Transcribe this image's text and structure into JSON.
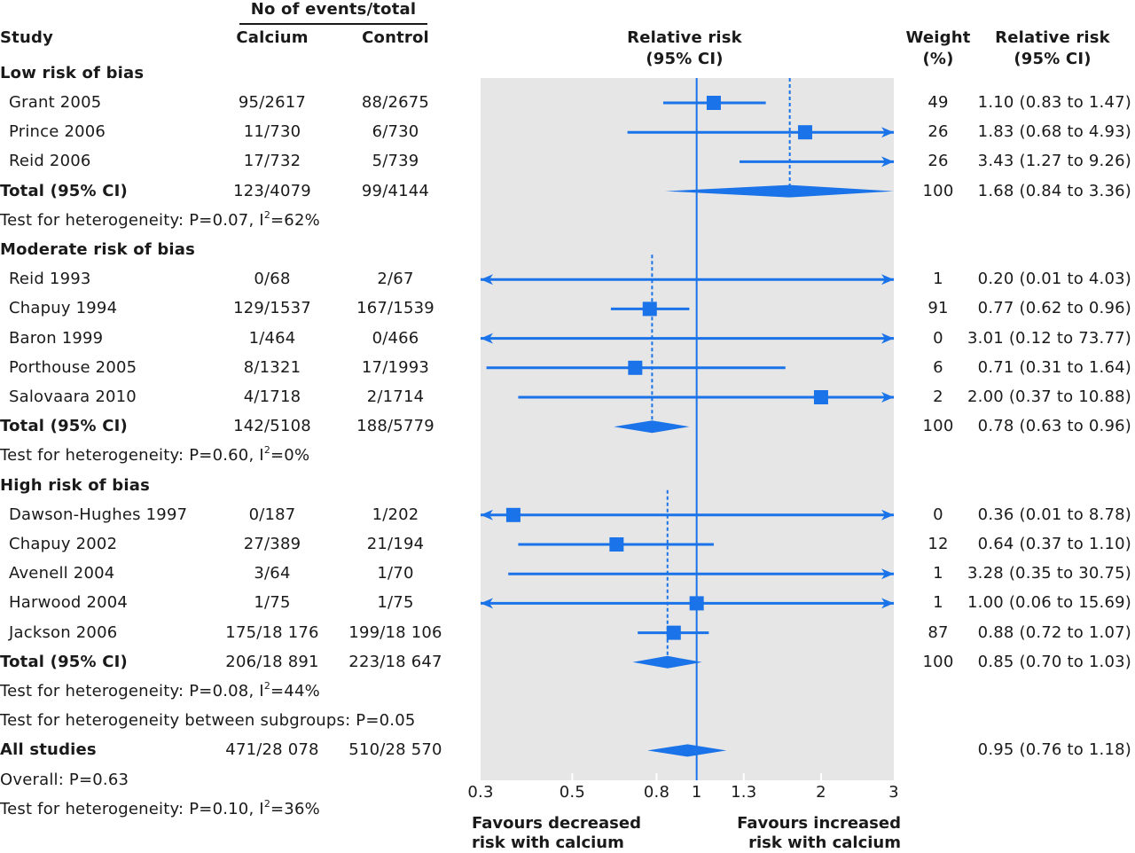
{
  "header": {
    "study": "Study",
    "events_group": "No of events/total",
    "calcium": "Calcium",
    "control": "Control",
    "rr_plot": "Relative risk",
    "rr_plot_ci": "(95% CI)",
    "weight": "Weight",
    "weight_unit": "(%)",
    "rr_text": "Relative risk",
    "rr_text_ci": "(95% CI)"
  },
  "colors": {
    "accent": "#1a73e8",
    "plot_bg": "#e6e6e6",
    "text": "#1a1a1a"
  },
  "chart_data": {
    "type": "forest",
    "title": "",
    "xlabel": "Relative risk (95% CI)",
    "xscale": "log",
    "xlim": [
      0.3,
      3
    ],
    "xticks": [
      "0.3",
      "0.5",
      "0.8",
      "1",
      "1.3",
      "2",
      "3"
    ],
    "xtick_values": [
      0.3,
      0.5,
      0.8,
      1,
      1.3,
      2,
      3
    ],
    "null_line": 1,
    "favours_left": [
      "Favours decreased",
      "risk with calcium"
    ],
    "favours_right": [
      "Favours increased",
      "risk with calcium"
    ],
    "subgroups": [
      {
        "name": "Low risk of bias",
        "studies": [
          {
            "study": "Grant 2005",
            "calcium": "95/2617",
            "control": "88/2675",
            "weight": "49",
            "rr": 1.1,
            "lo": 0.83,
            "hi": 1.47,
            "rr_text": "1.10 (0.83 to 1.47)"
          },
          {
            "study": "Prince 2006",
            "calcium": "11/730",
            "control": "6/730",
            "weight": "26",
            "rr": 1.83,
            "lo": 0.68,
            "hi": 4.93,
            "rr_text": "1.83 (0.68 to 4.93)"
          },
          {
            "study": "Reid 2006",
            "calcium": "17/732",
            "control": "5/739",
            "weight": "26",
            "rr": 3.43,
            "lo": 1.27,
            "hi": 9.26,
            "rr_text": "3.43 (1.27 to 9.26)"
          }
        ],
        "total": {
          "label": "Total (95% CI)",
          "calcium": "123/4079",
          "control": "99/4144",
          "weight": "100",
          "rr": 1.68,
          "lo": 0.84,
          "hi": 3.36,
          "rr_text": "1.68 (0.84 to 3.36)"
        },
        "heterogeneity": {
          "prefix": "Test for heterogeneity: P=0.07, I",
          "sup": "2",
          "suffix": "=62%"
        }
      },
      {
        "name": "Moderate risk of bias",
        "studies": [
          {
            "study": "Reid 1993",
            "calcium": "0/68",
            "control": "2/67",
            "weight": "1",
            "rr": 0.2,
            "lo": 0.01,
            "hi": 4.03,
            "rr_text": "0.20 (0.01 to 4.03)"
          },
          {
            "study": "Chapuy 1994",
            "calcium": "129/1537",
            "control": "167/1539",
            "weight": "91",
            "rr": 0.77,
            "lo": 0.62,
            "hi": 0.96,
            "rr_text": "0.77 (0.62 to 0.96)"
          },
          {
            "study": "Baron 1999",
            "calcium": "1/464",
            "control": "0/466",
            "weight": "0",
            "rr": 3.01,
            "lo": 0.12,
            "hi": 73.77,
            "rr_text": "3.01 (0.12 to 73.77)"
          },
          {
            "study": "Porthouse 2005",
            "calcium": "8/1321",
            "control": "17/1993",
            "weight": "6",
            "rr": 0.71,
            "lo": 0.31,
            "hi": 1.64,
            "rr_text": "0.71 (0.31 to 1.64)"
          },
          {
            "study": "Salovaara 2010",
            "calcium": "4/1718",
            "control": "2/1714",
            "weight": "2",
            "rr": 2.0,
            "lo": 0.37,
            "hi": 10.88,
            "rr_text": "2.00 (0.37 to 10.88)"
          }
        ],
        "total": {
          "label": "Total (95% CI)",
          "calcium": "142/5108",
          "control": "188/5779",
          "weight": "100",
          "rr": 0.78,
          "lo": 0.63,
          "hi": 0.96,
          "rr_text": "0.78 (0.63 to 0.96)"
        },
        "heterogeneity": {
          "prefix": "Test for heterogeneity: P=0.60, I",
          "sup": "2",
          "suffix": "=0%"
        }
      },
      {
        "name": "High risk of bias",
        "studies": [
          {
            "study": "Dawson-Hughes 1997",
            "calcium": "0/187",
            "control": "1/202",
            "weight": "0",
            "rr": 0.36,
            "lo": 0.01,
            "hi": 8.78,
            "rr_text": "0.36 (0.01 to 8.78)"
          },
          {
            "study": "Chapuy 2002",
            "calcium": "27/389",
            "control": "21/194",
            "weight": "12",
            "rr": 0.64,
            "lo": 0.37,
            "hi": 1.1,
            "rr_text": "0.64 (0.37 to 1.10)"
          },
          {
            "study": "Avenell 2004",
            "calcium": "3/64",
            "control": "1/70",
            "weight": "1",
            "rr": 3.28,
            "lo": 0.35,
            "hi": 30.75,
            "rr_text": "3.28 (0.35 to 30.75)"
          },
          {
            "study": "Harwood 2004",
            "calcium": "1/75",
            "control": "1/75",
            "weight": "1",
            "rr": 1.0,
            "lo": 0.06,
            "hi": 15.69,
            "rr_text": "1.00 (0.06 to 15.69)"
          },
          {
            "study": "Jackson 2006",
            "calcium": "175/18 176",
            "control": "199/18 106",
            "weight": "87",
            "rr": 0.88,
            "lo": 0.72,
            "hi": 1.07,
            "rr_text": "0.88 (0.72 to 1.07)"
          }
        ],
        "total": {
          "label": "Total (95% CI)",
          "calcium": "206/18 891",
          "control": "223/18 647",
          "weight": "100",
          "rr": 0.85,
          "lo": 0.7,
          "hi": 1.03,
          "rr_text": "0.85 (0.70 to 1.03)"
        },
        "heterogeneity": {
          "prefix": "Test for heterogeneity: P=0.08, I",
          "sup": "2",
          "suffix": "=44%"
        }
      }
    ],
    "between_subgroups": "Test for heterogeneity between subgroups: P=0.05",
    "overall": {
      "label": "All studies",
      "calcium": "471/28 078",
      "control": "510/28 570",
      "weight": "",
      "rr": 0.95,
      "lo": 0.76,
      "hi": 1.18,
      "rr_text": "0.95 (0.76 to 1.18)"
    },
    "overall_p": "Overall: P=0.63",
    "overall_heterogeneity": {
      "prefix": "Test for heterogeneity: P=0.10, I",
      "sup": "2",
      "suffix": "=36%"
    }
  }
}
